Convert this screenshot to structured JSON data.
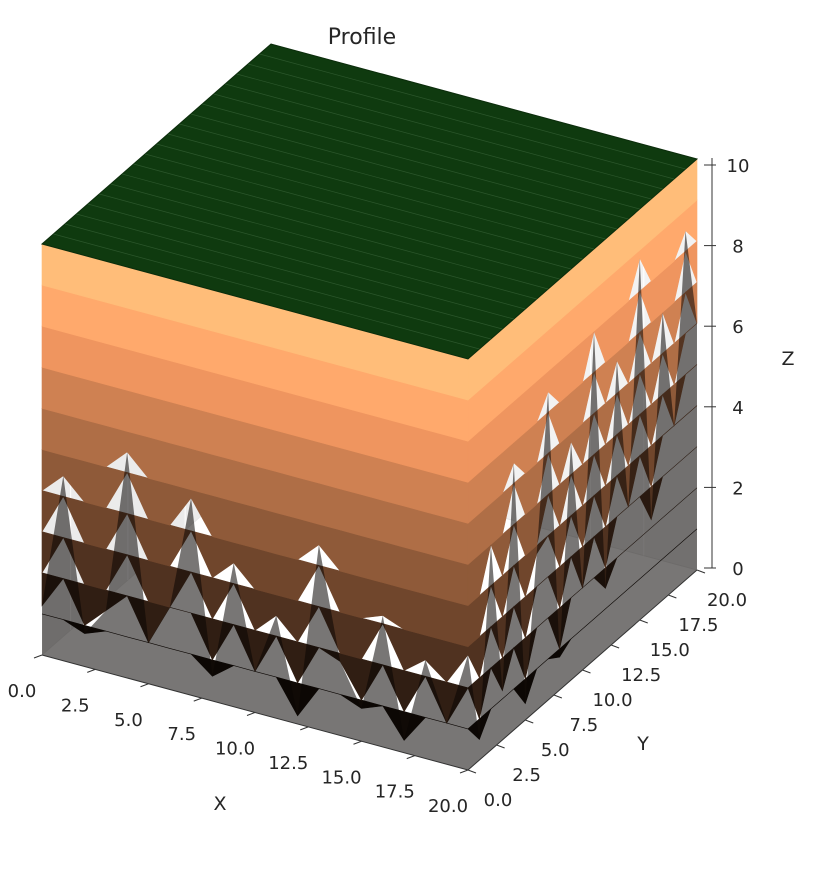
{
  "chart_data": {
    "type": "surface3d",
    "title": "Profile",
    "xlabel": "X",
    "ylabel": "Y",
    "zlabel": "Z",
    "xlim": [
      0,
      20
    ],
    "ylim": [
      0,
      20
    ],
    "zlim": [
      0,
      10
    ],
    "x_ticks": [
      "0.0",
      "2.5",
      "5.0",
      "7.5",
      "10.0",
      "12.5",
      "15.0",
      "17.5",
      "20.0"
    ],
    "y_ticks": [
      "0.0",
      "2.5",
      "5.0",
      "7.5",
      "10.0",
      "12.5",
      "15.0",
      "17.5",
      "20.0"
    ],
    "z_ticks": [
      "0",
      "2",
      "4",
      "6",
      "8",
      "10"
    ],
    "top_surface": {
      "z": 10,
      "color": "#0f3a0f"
    },
    "colormap": "copper",
    "front_face_profile": {
      "description_axis": "x",
      "x": [
        0,
        1,
        2,
        3,
        4,
        5,
        6,
        7,
        8,
        9,
        10,
        11,
        12,
        13,
        14,
        15,
        16,
        17,
        18,
        19,
        20
      ],
      "z_min": [
        1.2,
        4.5,
        0.8,
        1.5,
        5.5,
        1.0,
        2.0,
        4.8,
        0.6,
        3.5,
        1.0,
        2.5,
        0.2,
        4.5,
        1.8,
        0.8,
        3.2,
        0.3,
        2.4,
        1.0,
        2.8
      ]
    },
    "side_face_profile": {
      "description_axis": "y",
      "y": [
        0,
        1,
        2,
        3,
        4,
        5,
        6,
        7,
        8,
        9,
        10,
        11,
        12,
        13,
        14,
        15,
        16,
        17,
        18,
        19,
        20
      ],
      "z_min": [
        2.8,
        0.5,
        5.0,
        1.2,
        6.5,
        0.4,
        3.8,
        7.5,
        0.8,
        5.8,
        2.0,
        8.0,
        1.5,
        6.8,
        3.0,
        8.8,
        2.2,
        7.0,
        4.0,
        8.5,
        6.0
      ]
    },
    "grid": true
  }
}
